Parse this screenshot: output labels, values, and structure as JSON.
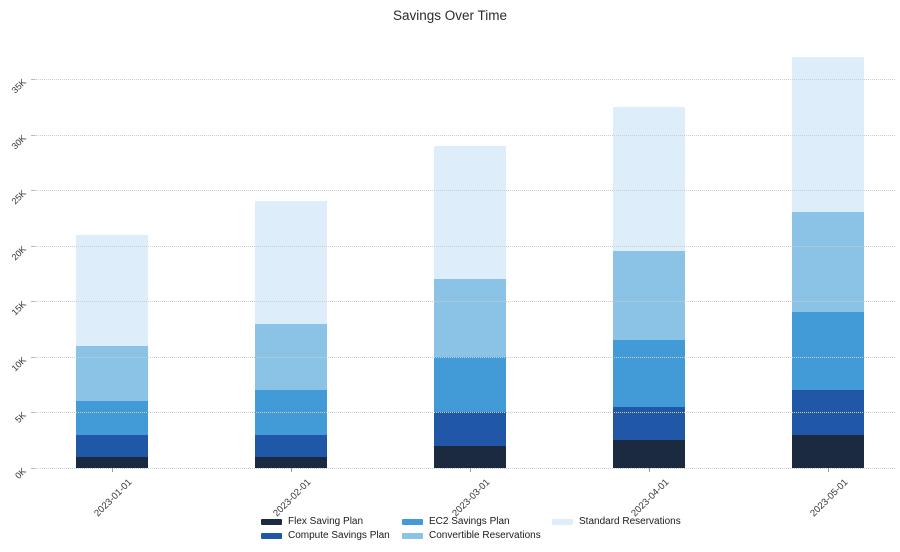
{
  "title": "Savings Over Time",
  "chart_data": {
    "type": "bar",
    "stacked": true,
    "title": "Savings Over Time",
    "xlabel": "",
    "ylabel": "",
    "ylim": [
      0,
      35000
    ],
    "grid": "horizontal-dotted",
    "legend_position": "bottom",
    "categories": [
      "2023-01-01",
      "2023-02-01",
      "2023-03-01",
      "2023-04-01",
      "2023-05-01"
    ],
    "series": [
      {
        "name": "Flex Saving Plan",
        "color": "#1b2a3f",
        "values": [
          1000,
          1000,
          2000,
          2500,
          3000
        ]
      },
      {
        "name": "Compute Savings Plan",
        "color": "#2157a7",
        "values": [
          2000,
          2000,
          3000,
          3000,
          4000
        ]
      },
      {
        "name": "EC2 Savings Plan",
        "color": "#429ad6",
        "values": [
          3000,
          4000,
          5000,
          6000,
          7000
        ]
      },
      {
        "name": "Convertible Reservations",
        "color": "#8ac3e6",
        "values": [
          5000,
          6000,
          7000,
          8000,
          9000
        ]
      },
      {
        "name": "Standard Reservations",
        "color": "#ddeefa",
        "values": [
          10000,
          11000,
          12000,
          13000,
          14000
        ]
      }
    ],
    "totals": [
      21000,
      24000,
      29000,
      32500,
      37000
    ],
    "y_ticks": [
      {
        "value": 0,
        "label": "0K"
      },
      {
        "value": 5000,
        "label": "5K"
      },
      {
        "value": 10000,
        "label": "10K"
      },
      {
        "value": 15000,
        "label": "15K"
      },
      {
        "value": 20000,
        "label": "20K"
      },
      {
        "value": 25000,
        "label": "25K"
      },
      {
        "value": 30000,
        "label": "30K"
      },
      {
        "value": 35000,
        "label": "35K"
      }
    ],
    "legend_columns": [
      [
        0,
        1
      ],
      [
        2,
        3
      ],
      [
        4
      ]
    ]
  }
}
